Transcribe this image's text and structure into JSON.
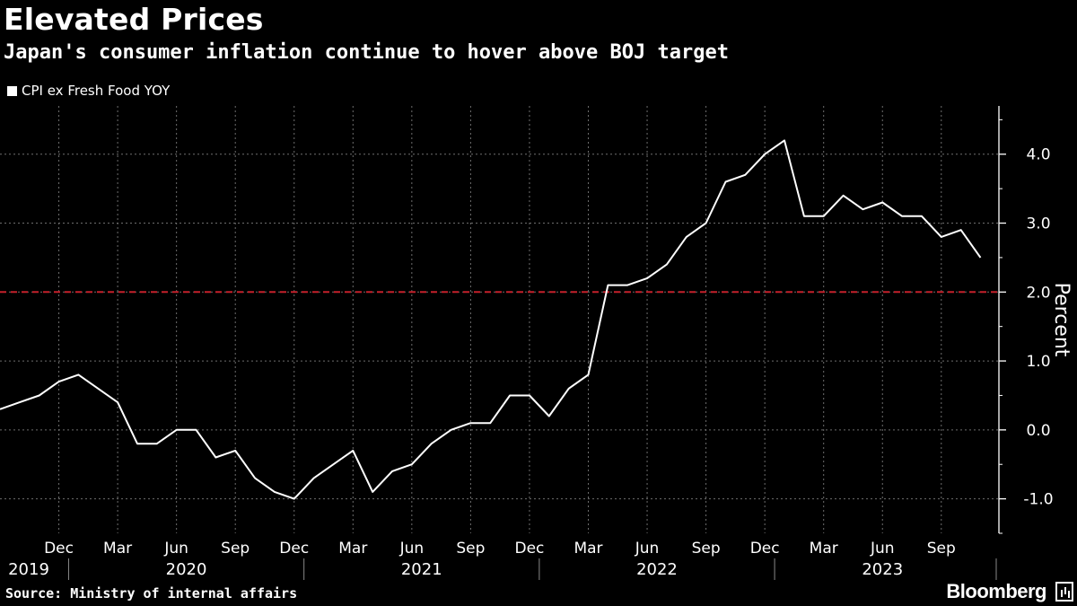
{
  "header": {
    "title": "Elevated Prices",
    "subtitle": "Japan's consumer inflation continue to hover above BOJ target"
  },
  "footer": {
    "source": "Source: Ministry of internal affairs",
    "brand": "Bloomberg"
  },
  "colors": {
    "background": "#000000",
    "line": "#ffffff",
    "target_line": "#c4202b",
    "grid": "#6e6e6e"
  },
  "chart_data": {
    "type": "line",
    "title": "Elevated Prices",
    "subtitle": "Japan's consumer inflation continue to hover above BOJ target",
    "ylabel": "Percent",
    "xlabel": "",
    "ylim": [
      -1.5,
      4.7
    ],
    "yticks": [
      -1.0,
      0.0,
      1.0,
      2.0,
      3.0,
      4.0
    ],
    "ytick_labels": [
      "-1.0",
      "0.0",
      "1.0",
      "2.0",
      "3.0",
      "4.0"
    ],
    "grid": true,
    "legend_position": "top-left",
    "series": [
      {
        "name": "CPI ex Fresh Food YOY",
        "x": [
          "2019-09",
          "2019-10",
          "2019-11",
          "2019-12",
          "2020-01",
          "2020-02",
          "2020-03",
          "2020-04",
          "2020-05",
          "2020-06",
          "2020-07",
          "2020-08",
          "2020-09",
          "2020-10",
          "2020-11",
          "2020-12",
          "2021-01",
          "2021-02",
          "2021-03",
          "2021-04",
          "2021-05",
          "2021-06",
          "2021-07",
          "2021-08",
          "2021-09",
          "2021-10",
          "2021-11",
          "2021-12",
          "2022-01",
          "2022-02",
          "2022-03",
          "2022-04",
          "2022-05",
          "2022-06",
          "2022-07",
          "2022-08",
          "2022-09",
          "2022-10",
          "2022-11",
          "2022-12",
          "2023-01",
          "2023-02",
          "2023-03",
          "2023-04",
          "2023-05",
          "2023-06",
          "2023-07",
          "2023-08",
          "2023-09",
          "2023-10",
          "2023-11"
        ],
        "values": [
          0.3,
          0.4,
          0.5,
          0.7,
          0.8,
          0.6,
          0.4,
          -0.2,
          -0.2,
          0.0,
          0.0,
          -0.4,
          -0.3,
          -0.7,
          -0.9,
          -1.0,
          -0.7,
          -0.5,
          -0.3,
          -0.9,
          -0.6,
          -0.5,
          -0.2,
          0.0,
          0.1,
          0.1,
          0.5,
          0.5,
          0.2,
          0.6,
          0.8,
          2.1,
          2.1,
          2.2,
          2.4,
          2.8,
          3.0,
          3.6,
          3.7,
          4.0,
          4.2,
          3.1,
          3.1,
          3.4,
          3.2,
          3.3,
          3.1,
          3.1,
          2.8,
          2.9,
          2.5
        ]
      }
    ],
    "reference_line": {
      "name": "BOJ target",
      "value": 2.0,
      "style": "dashed"
    },
    "x_month_ticks": [
      {
        "date": "2019-12",
        "label": "Dec"
      },
      {
        "date": "2020-03",
        "label": "Mar"
      },
      {
        "date": "2020-06",
        "label": "Jun"
      },
      {
        "date": "2020-09",
        "label": "Sep"
      },
      {
        "date": "2020-12",
        "label": "Dec"
      },
      {
        "date": "2021-03",
        "label": "Mar"
      },
      {
        "date": "2021-06",
        "label": "Jun"
      },
      {
        "date": "2021-09",
        "label": "Sep"
      },
      {
        "date": "2021-12",
        "label": "Dec"
      },
      {
        "date": "2022-03",
        "label": "Mar"
      },
      {
        "date": "2022-06",
        "label": "Jun"
      },
      {
        "date": "2022-09",
        "label": "Sep"
      },
      {
        "date": "2022-12",
        "label": "Dec"
      },
      {
        "date": "2023-03",
        "label": "Mar"
      },
      {
        "date": "2023-06",
        "label": "Jun"
      },
      {
        "date": "2023-09",
        "label": "Sep"
      }
    ],
    "x_year_labels": [
      {
        "label": "2019",
        "from": "2019-09",
        "to": "2019-12"
      },
      {
        "label": "2020",
        "from": "2020-01",
        "to": "2020-12"
      },
      {
        "label": "2021",
        "from": "2021-01",
        "to": "2021-12"
      },
      {
        "label": "2022",
        "from": "2022-01",
        "to": "2022-12"
      },
      {
        "label": "2023",
        "from": "2023-01",
        "to": "2023-11"
      }
    ]
  }
}
